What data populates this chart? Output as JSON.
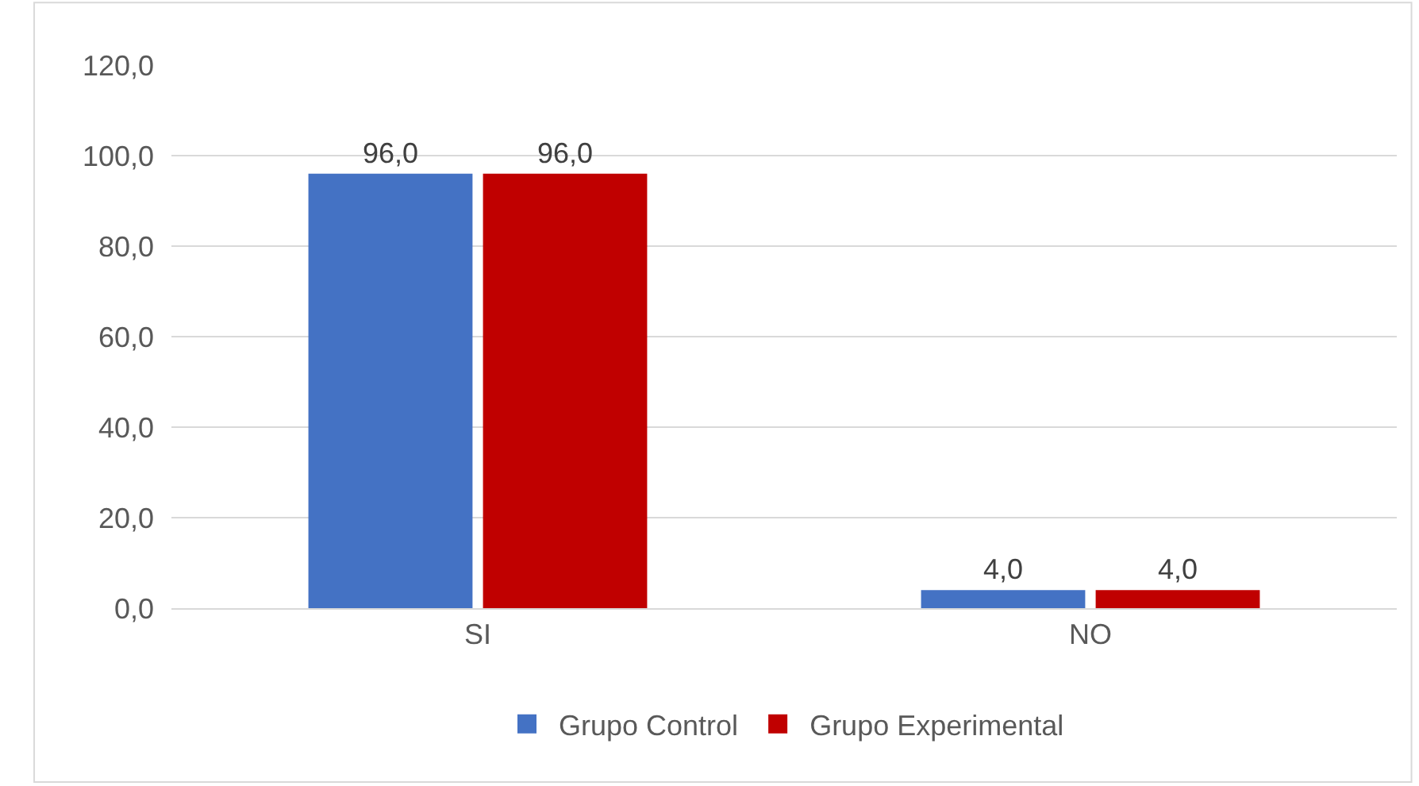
{
  "chart_data": {
    "type": "bar",
    "categories": [
      "SI",
      "NO"
    ],
    "series": [
      {
        "name": "Grupo Control",
        "color": "#4472c4",
        "values": [
          96.0,
          4.0
        ],
        "value_labels": [
          "96,0",
          "4,0"
        ]
      },
      {
        "name": "Grupo Experimental",
        "color": "#c00000",
        "values": [
          96.0,
          4.0
        ],
        "value_labels": [
          "96,0",
          "4,0"
        ]
      }
    ],
    "ylim": [
      0,
      120
    ],
    "yticks": [
      {
        "value": 0,
        "label": "0,0"
      },
      {
        "value": 20,
        "label": "20,0"
      },
      {
        "value": 40,
        "label": "40,0"
      },
      {
        "value": 60,
        "label": "60,0"
      },
      {
        "value": 80,
        "label": "80,0"
      },
      {
        "value": 100,
        "label": "100,0"
      },
      {
        "value": 120,
        "label": "120,0"
      }
    ],
    "grid": "y",
    "legend": "bottom"
  }
}
